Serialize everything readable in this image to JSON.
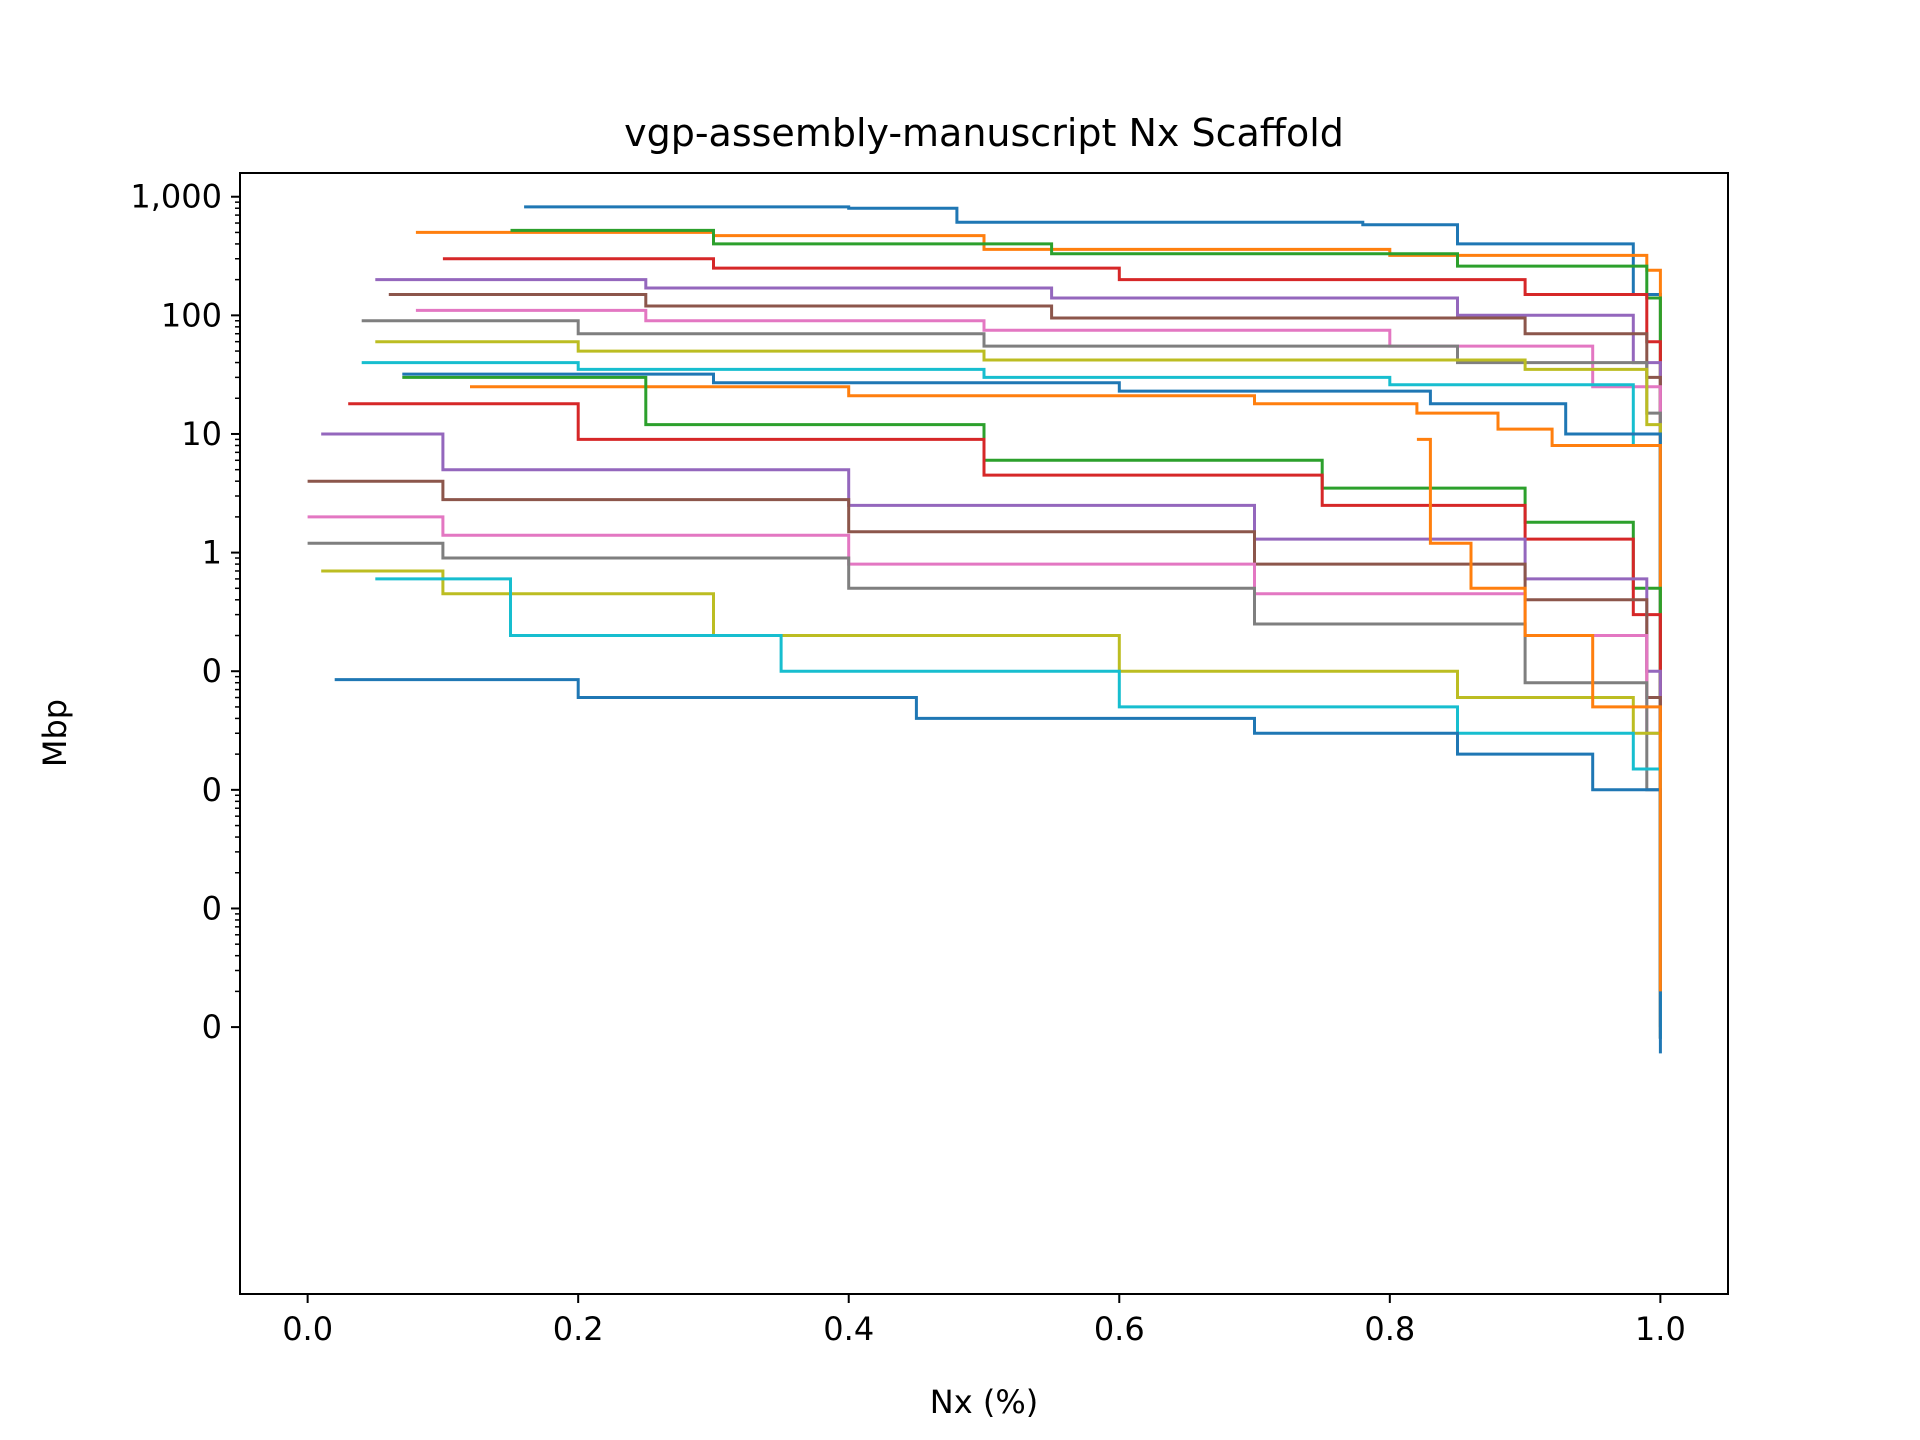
{
  "chart_data": {
    "type": "line",
    "title": "vgp-assembly-manuscript Nx Scaffold",
    "xlabel": "Nx (%)",
    "ylabel": "Mbp",
    "xlim": [
      -0.05,
      1.05
    ],
    "ylim_log10": [
      -6.25,
      1.0
    ],
    "yscale": "log",
    "grid": false,
    "legend": "none",
    "x_ticks": [
      {
        "value": 0.0,
        "label": "0.0"
      },
      {
        "value": 0.2,
        "label": "0.2"
      },
      {
        "value": 0.4,
        "label": "0.4"
      },
      {
        "value": 0.6,
        "label": "0.6"
      },
      {
        "value": 0.8,
        "label": "0.8"
      },
      {
        "value": 1.0,
        "label": "1.0"
      }
    ],
    "y_ticks": [
      {
        "log10": 3,
        "label": "1,000"
      },
      {
        "log10": 2,
        "label": "100"
      },
      {
        "log10": 1,
        "label": "10"
      },
      {
        "log10": 0,
        "label": "1"
      },
      {
        "log10": -1,
        "label": "0"
      },
      {
        "log10": -2,
        "label": "0"
      },
      {
        "log10": -3,
        "label": "0"
      },
      {
        "log10": -4,
        "label": "0"
      }
    ],
    "palette": [
      "#1f77b4",
      "#ff7f0e",
      "#2ca02c",
      "#d62728",
      "#9467bd",
      "#8c564b",
      "#e377c2",
      "#7f7f7f",
      "#bcbd22",
      "#17becf"
    ],
    "series": [
      {
        "x": [
          0.16,
          0.4,
          0.48,
          0.78,
          0.85,
          0.98,
          1.0
        ],
        "y": [
          820,
          800,
          610,
          580,
          400,
          150,
          0.0002
        ]
      },
      {
        "x": [
          0.08,
          0.3,
          0.5,
          0.8,
          0.99,
          1.0
        ],
        "y": [
          500,
          470,
          360,
          320,
          240,
          0.0002
        ]
      },
      {
        "x": [
          0.15,
          0.3,
          0.55,
          0.85,
          0.99,
          1.0
        ],
        "y": [
          520,
          400,
          330,
          260,
          140,
          0.0002
        ]
      },
      {
        "x": [
          0.1,
          0.3,
          0.6,
          0.9,
          0.99,
          1.0
        ],
        "y": [
          300,
          250,
          200,
          150,
          60,
          0.0002
        ]
      },
      {
        "x": [
          0.05,
          0.25,
          0.55,
          0.85,
          0.98,
          1.0
        ],
        "y": [
          200,
          170,
          140,
          100,
          40,
          0.0002
        ]
      },
      {
        "x": [
          0.06,
          0.25,
          0.55,
          0.9,
          0.99,
          1.0
        ],
        "y": [
          150,
          120,
          95,
          70,
          30,
          0.0002
        ]
      },
      {
        "x": [
          0.08,
          0.25,
          0.5,
          0.8,
          0.95,
          1.0
        ],
        "y": [
          110,
          90,
          75,
          55,
          25,
          0.0002
        ]
      },
      {
        "x": [
          0.04,
          0.2,
          0.5,
          0.85,
          0.99,
          1.0
        ],
        "y": [
          90,
          70,
          55,
          40,
          15,
          0.0002
        ]
      },
      {
        "x": [
          0.05,
          0.2,
          0.5,
          0.9,
          0.99,
          1.0
        ],
        "y": [
          60,
          50,
          42,
          35,
          12,
          0.0002
        ]
      },
      {
        "x": [
          0.04,
          0.2,
          0.5,
          0.8,
          0.98,
          1.0
        ],
        "y": [
          40,
          35,
          30,
          26,
          8,
          0.0002
        ]
      },
      {
        "x": [
          0.07,
          0.3,
          0.6,
          0.83,
          0.93,
          1.0
        ],
        "y": [
          32,
          27,
          23,
          18,
          10,
          0.0002
        ]
      },
      {
        "x": [
          0.12,
          0.4,
          0.7,
          0.82,
          0.88,
          0.92,
          1.0
        ],
        "y": [
          25,
          21,
          18,
          15,
          11,
          8,
          0.0002
        ]
      },
      {
        "x": [
          0.07,
          0.25,
          0.5,
          0.75,
          0.9,
          0.98,
          1.0
        ],
        "y": [
          30,
          12,
          6,
          3.5,
          1.8,
          0.5,
          0.0001
        ]
      },
      {
        "x": [
          0.03,
          0.2,
          0.5,
          0.75,
          0.9,
          0.98,
          1.0
        ],
        "y": [
          18,
          9,
          4.5,
          2.5,
          1.3,
          0.3,
          0.0001
        ]
      },
      {
        "x": [
          0.01,
          0.1,
          0.4,
          0.7,
          0.9,
          0.99,
          1.0
        ],
        "y": [
          10,
          5,
          2.5,
          1.3,
          0.6,
          0.1,
          8e-05
        ]
      },
      {
        "x": [
          0.0,
          0.1,
          0.4,
          0.7,
          0.9,
          0.99,
          1.0
        ],
        "y": [
          4,
          2.8,
          1.5,
          0.8,
          0.4,
          0.06,
          8e-05
        ]
      },
      {
        "x": [
          0.0,
          0.1,
          0.4,
          0.7,
          0.9,
          0.99,
          1.0
        ],
        "y": [
          2,
          1.4,
          0.8,
          0.45,
          0.2,
          0.03,
          8e-05
        ]
      },
      {
        "x": [
          0.0,
          0.1,
          0.4,
          0.7,
          0.9,
          0.99,
          1.0
        ],
        "y": [
          1.2,
          0.9,
          0.5,
          0.25,
          0.08,
          0.01,
          8e-05
        ]
      },
      {
        "x": [
          0.01,
          0.1,
          0.3,
          0.6,
          0.85,
          0.98,
          1.0
        ],
        "y": [
          0.7,
          0.45,
          0.2,
          0.1,
          0.06,
          0.03,
          8e-05
        ]
      },
      {
        "x": [
          0.05,
          0.15,
          0.35,
          0.6,
          0.85,
          0.98,
          1.0
        ],
        "y": [
          0.6,
          0.2,
          0.1,
          0.05,
          0.03,
          0.015,
          8e-05
        ]
      },
      {
        "x": [
          0.02,
          0.2,
          0.45,
          0.7,
          0.85,
          0.95,
          1.0
        ],
        "y": [
          0.085,
          0.06,
          0.04,
          0.03,
          0.02,
          0.01,
          6e-05
        ]
      },
      {
        "x": [
          0.82,
          0.83,
          0.86,
          0.9,
          0.95,
          1.0
        ],
        "y": [
          9,
          1.2,
          0.5,
          0.2,
          0.05,
          0.0002
        ]
      }
    ]
  }
}
